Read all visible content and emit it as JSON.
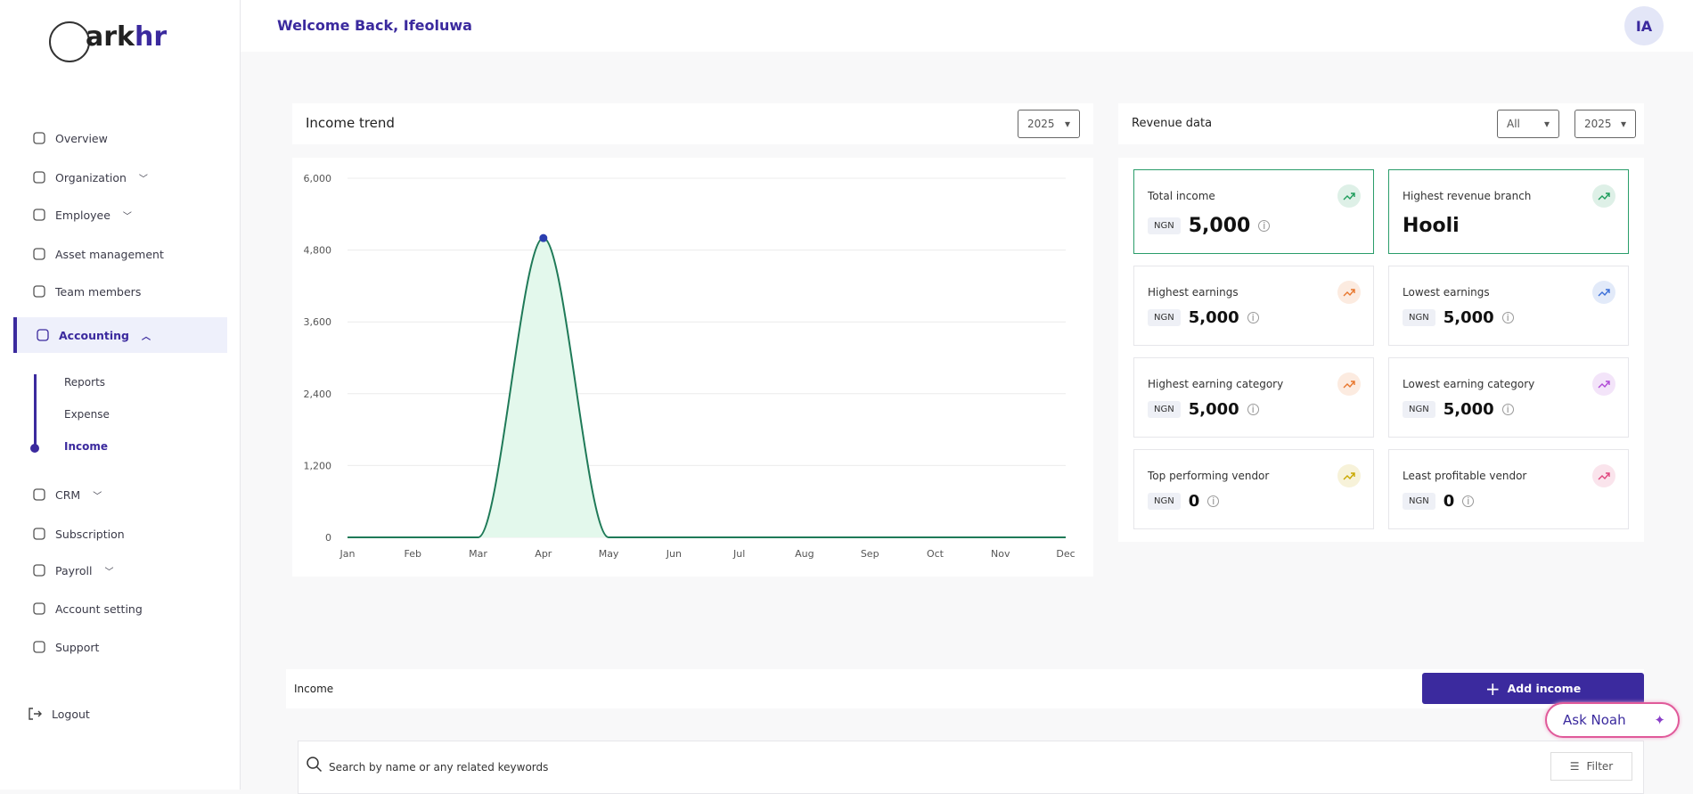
{
  "sidebar": {
    "logo_main": "ark",
    "logo_accent": "hr",
    "nav": [
      {
        "label": "Overview"
      },
      {
        "label": "Organization",
        "expandable": true
      },
      {
        "label": "Employee",
        "expandable": true
      },
      {
        "label": "Asset management"
      },
      {
        "label": "Team members"
      },
      {
        "label": "Accounting",
        "expandable": true,
        "active": true
      },
      {
        "label": "CRM",
        "expandable": true
      },
      {
        "label": "Subscription"
      },
      {
        "label": "Payroll",
        "expandable": true
      },
      {
        "label": "Account setting"
      },
      {
        "label": "Support"
      }
    ],
    "accounting_sub": [
      {
        "label": "Reports"
      },
      {
        "label": "Expense"
      },
      {
        "label": "Income",
        "active": true
      }
    ],
    "logout": "Logout"
  },
  "header": {
    "greeting": "Welcome Back, Ifeoluwa",
    "avatar": "IA"
  },
  "income_trend": {
    "title": "Income trend",
    "year": "2025"
  },
  "income_chart": {
    "type": "line",
    "categories": [
      "Jan",
      "Feb",
      "Mar",
      "Apr",
      "May",
      "Jun",
      "Jul",
      "Aug",
      "Sep",
      "Oct",
      "Nov",
      "Dec"
    ],
    "values": [
      0,
      0,
      0,
      5000,
      0,
      0,
      0,
      0,
      0,
      0,
      0,
      0
    ],
    "ylim": [
      0,
      6000
    ],
    "yticks": [
      0,
      {
        "value": 1200,
        "label": "1,200"
      },
      {
        "value": 2400,
        "label": "2,400"
      },
      {
        "value": 3600,
        "label": "3,600"
      },
      {
        "value": 4800,
        "label": "4,800"
      },
      {
        "value": 6000,
        "label": "6,000"
      }
    ],
    "color": "#1f7a58",
    "area_color": "#e3f8ec",
    "point_color": "#2b3eb0",
    "grid": true
  },
  "revenue": {
    "title": "Revenue data",
    "filter": "All",
    "year": "2025",
    "cards": [
      {
        "label": "Total income",
        "currency": "NGN",
        "value": "5,000",
        "icon_color": "#1f9d5c",
        "highlight": true
      },
      {
        "label": "Highest revenue branch",
        "value": "Hooli",
        "icon_color": "#1f9d5c",
        "highlight": true
      },
      {
        "label": "Highest earnings",
        "currency": "NGN",
        "value": "5,000",
        "icon_color": "#e8772e"
      },
      {
        "label": "Lowest earnings",
        "currency": "NGN",
        "value": "5,000",
        "icon_color": "#3b6fd8"
      },
      {
        "label": "Highest earning category",
        "currency": "NGN",
        "value": "5,000",
        "icon_color": "#e8772e"
      },
      {
        "label": "Lowest earning category",
        "currency": "NGN",
        "value": "5,000",
        "icon_color": "#b04bd6"
      },
      {
        "label": "Top performing vendor",
        "currency": "NGN",
        "value": "0",
        "icon_color": "#c9a800"
      },
      {
        "label": "Least profitable vendor",
        "currency": "NGN",
        "value": "0",
        "icon_color": "#e0487f"
      }
    ]
  },
  "income_section": {
    "title": "Income",
    "add_button": "Add income",
    "search_placeholder": "Search by name or any related keywords",
    "filter": "Filter"
  },
  "assistant": "Ask Noah"
}
